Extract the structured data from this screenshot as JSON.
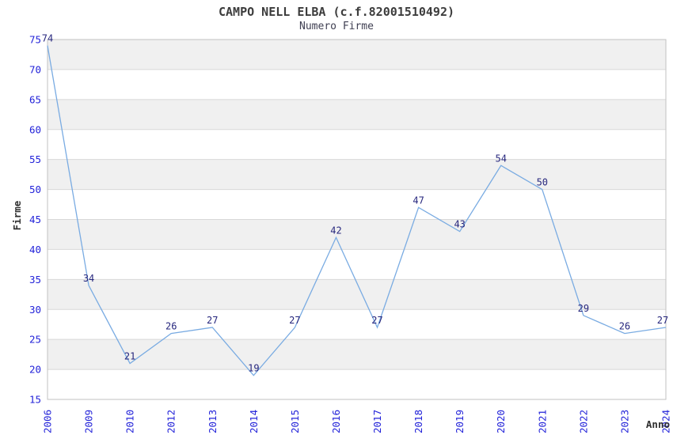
{
  "chart_data": {
    "type": "line",
    "title": "CAMPO NELL ELBA (c.f.82001510492)",
    "subtitle": "Numero Firme",
    "xlabel": "Anno",
    "ylabel": "Firme",
    "categories": [
      "2006",
      "2009",
      "2010",
      "2012",
      "2013",
      "2014",
      "2015",
      "2016",
      "2017",
      "2018",
      "2019",
      "2020",
      "2021",
      "2022",
      "2023",
      "2024"
    ],
    "values": [
      74,
      34,
      21,
      26,
      27,
      19,
      27,
      42,
      27,
      47,
      43,
      54,
      50,
      29,
      26,
      27
    ],
    "ylim": [
      15,
      75
    ],
    "ytick_step": 5,
    "grid": "horizontal",
    "legend": "none",
    "x_tick_rotation": -90,
    "data_labels": "above-points",
    "colors": {
      "line": "#79abe2",
      "tick_label": "#2323d9",
      "data_label": "#26267d",
      "band": "#f0f0f0",
      "gridline": "#d8d8d8",
      "border": "#c2c2c2",
      "title": "#3c3c3c",
      "subtitle": "#3f3f52",
      "axis_title": "#303030",
      "background": "#ffffff"
    }
  }
}
